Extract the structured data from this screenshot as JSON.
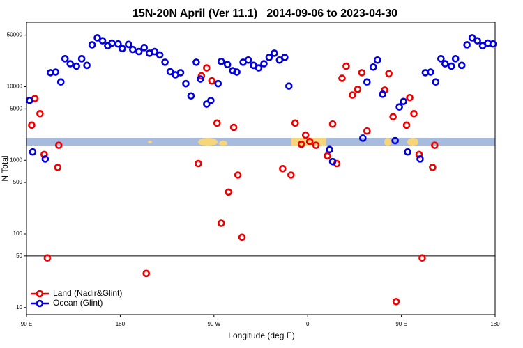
{
  "chart_data": {
    "type": "scatter",
    "title": "15N-20N April (Ver 11.1)   2014-09-06 to 2023-04-30",
    "xlabel": "Longitude (deg E)",
    "ylabel": "N Total",
    "log_y": true,
    "xlim": [
      90,
      540
    ],
    "ylim": [
      8,
      75000
    ],
    "xticks": [
      {
        "value": 90,
        "label": "90 E"
      },
      180,
      {
        "value": 270,
        "label": "90 W"
      },
      {
        "value": 360,
        "label": "0"
      },
      {
        "value": 450,
        "label": "90 E"
      },
      {
        "value": 540,
        "label": "180"
      }
    ],
    "yticks": [
      10,
      50,
      100,
      500,
      1000,
      5000,
      10000,
      50000
    ],
    "reference_line": 50,
    "legend": "bottom left",
    "series": [
      {
        "name": "Land (Nadir&Glint)",
        "color": "#ee0000",
        "x": [
          95,
          98,
          103,
          107,
          110,
          120,
          121,
          205,
          255,
          258,
          263,
          268,
          273,
          277,
          284,
          289,
          293,
          297,
          336,
          344,
          348,
          354,
          358,
          362,
          368,
          379,
          384,
          388,
          393,
          397,
          403,
          408,
          412,
          417,
          434,
          438,
          442,
          445,
          455,
          458,
          462,
          467,
          470,
          480,
          482
        ],
        "values": [
          3000,
          6900,
          4300,
          1200,
          47,
          800,
          1600,
          29,
          900,
          14000,
          18000,
          12000,
          3200,
          140,
          370,
          2800,
          630,
          90,
          770,
          630,
          3200,
          1650,
          2200,
          1800,
          1600,
          1150,
          3100,
          900,
          13000,
          19000,
          7700,
          9200,
          15500,
          2500,
          9000,
          15000,
          3900,
          12,
          3000,
          7100,
          4300,
          1200,
          47,
          800,
          1600
        ]
      },
      {
        "name": "Ocean (Glint)",
        "color": "#0000dd",
        "x": [
          93,
          96,
          108,
          113,
          118,
          123,
          127,
          132,
          138,
          143,
          148,
          153,
          158,
          163,
          168,
          172,
          178,
          182,
          188,
          192,
          198,
          203,
          208,
          213,
          218,
          223,
          228,
          233,
          238,
          243,
          248,
          253,
          257,
          263,
          267,
          274,
          277,
          283,
          288,
          292,
          298,
          303,
          308,
          313,
          318,
          323,
          328,
          333,
          338,
          342,
          381,
          384,
          413,
          417,
          423,
          427,
          432,
          444,
          448,
          452,
          456,
          468,
          473,
          478,
          483,
          488,
          492,
          498,
          502,
          508,
          513,
          518,
          523,
          528,
          533,
          538
        ],
        "values": [
          6500,
          1300,
          1040,
          15500,
          15800,
          11600,
          24000,
          20500,
          19000,
          24000,
          19500,
          37000,
          46000,
          42000,
          36000,
          39000,
          38000,
          33000,
          37500,
          32000,
          30000,
          34000,
          28500,
          30000,
          27000,
          21500,
          16000,
          14500,
          15500,
          11000,
          7500,
          21500,
          12700,
          5800,
          6500,
          11000,
          22000,
          20000,
          16500,
          15800,
          21500,
          23000,
          19500,
          18000,
          20500,
          25000,
          28500,
          23000,
          25000,
          10200,
          1400,
          960,
          2000,
          11600,
          18500,
          23000,
          7900,
          1850,
          5300,
          6300,
          1300,
          1040,
          15500,
          15800,
          11600,
          24000,
          20500,
          19000,
          24000,
          19500,
          37000,
          46000,
          42000,
          36000,
          39000,
          38000
        ]
      }
    ]
  }
}
